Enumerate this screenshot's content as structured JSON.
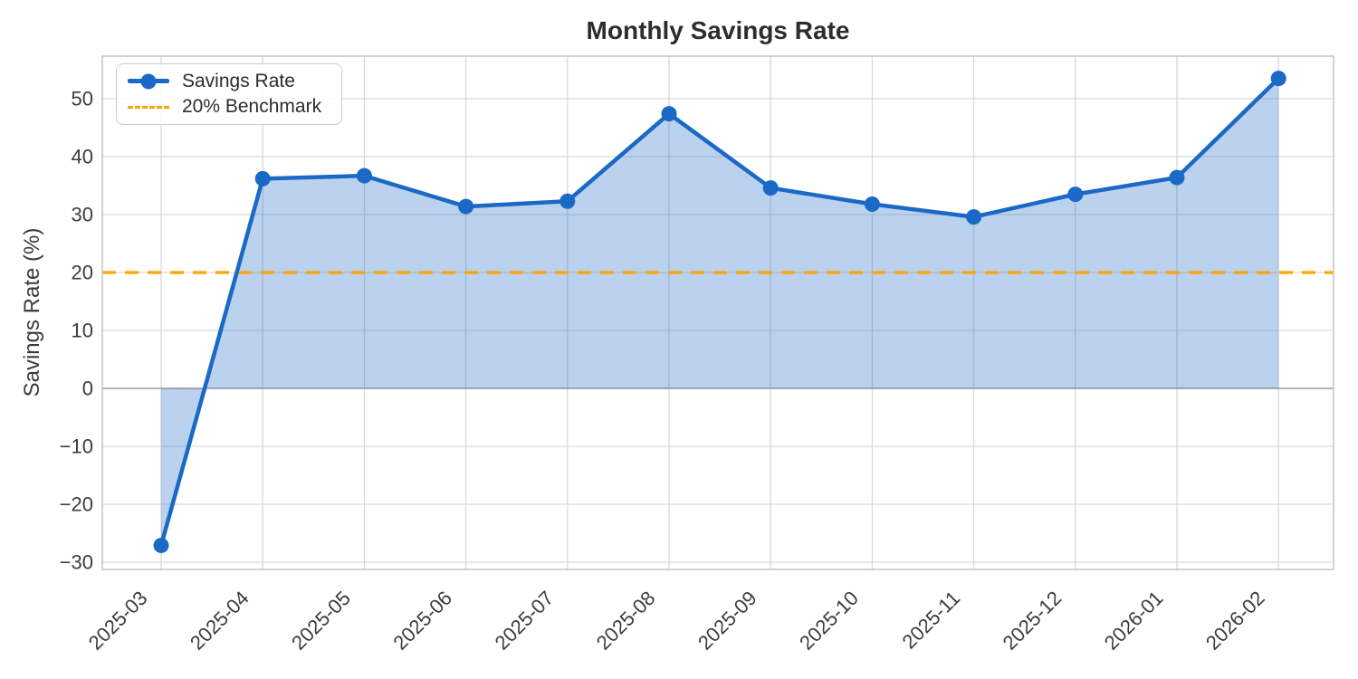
{
  "chart_data": {
    "type": "line",
    "title": "Monthly Savings Rate",
    "ylabel": "Savings Rate (%)",
    "xlabel": "",
    "categories": [
      "2025-03",
      "2025-04",
      "2025-05",
      "2025-06",
      "2025-07",
      "2025-08",
      "2025-09",
      "2025-10",
      "2025-11",
      "2025-12",
      "2026-01",
      "2026-02"
    ],
    "series": [
      {
        "name": "Savings Rate",
        "type": "line",
        "marker": "circle",
        "fill_to_zero": true,
        "values": [
          -27.1,
          36.2,
          36.7,
          31.4,
          32.3,
          47.4,
          34.6,
          31.8,
          29.6,
          33.5,
          36.4,
          53.5
        ]
      },
      {
        "name": "20% Benchmark",
        "type": "hline",
        "value": 20,
        "style": "dashed"
      }
    ],
    "yticks": [
      -30,
      -20,
      -10,
      0,
      10,
      20,
      30,
      40,
      50
    ],
    "ylim": [
      -31.25,
      57.35
    ],
    "grid": true,
    "legend_position": "upper-left"
  },
  "colors": {
    "line": "#1b69c6",
    "fill": "rgba(27,105,198,0.3)",
    "benchmark": "#ffa500",
    "grid": "#d9d9d9",
    "zero_line": "#a8a8a8",
    "border": "#c6c6c6",
    "tick_text": "#3c3c3c",
    "title_text": "#2d2d2d"
  }
}
